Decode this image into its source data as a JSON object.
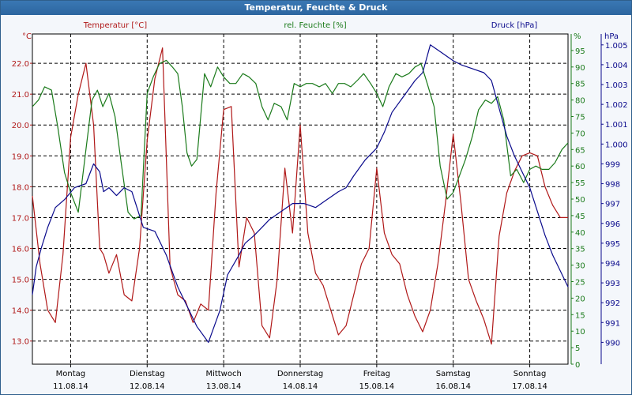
{
  "window": {
    "title": "Temperatur, Feuchte & Druck"
  },
  "colors": {
    "temperature": "#b01818",
    "humidity": "#1a7a1a",
    "pressure": "#0a0a8c",
    "grid": "#000000",
    "background": "#ffffff"
  },
  "chart_data": {
    "type": "line",
    "title": "Temperatur, Feuchte & Druck",
    "grid": true,
    "days": [
      {
        "name": "Montag",
        "date": "11.08.14"
      },
      {
        "name": "Dienstag",
        "date": "12.08.14"
      },
      {
        "name": "Mittwoch",
        "date": "13.08.14"
      },
      {
        "name": "Donnerstag",
        "date": "14.08.14"
      },
      {
        "name": "Freitag",
        "date": "15.08.14"
      },
      {
        "name": "Samstag",
        "date": "16.08.14"
      },
      {
        "name": "Sonntag",
        "date": "17.08.14"
      }
    ],
    "x_range": [
      0,
      7
    ],
    "axes": {
      "temperature": {
        "label": "Temperatur [°C]",
        "unit": "°C",
        "range": [
          12.25,
          22.95
        ],
        "ticks": [
          "13.0",
          "14.0",
          "15.0",
          "16.0",
          "17.0",
          "18.0",
          "19.0",
          "20.0",
          "21.0",
          "22.0"
        ]
      },
      "humidity": {
        "label": "rel. Feuchte [%]",
        "unit": "%",
        "range": [
          0,
          100
        ],
        "ticks": [
          "0",
          "5",
          "10",
          "15",
          "20",
          "25",
          "30",
          "35",
          "40",
          "45",
          "50",
          "55",
          "60",
          "65",
          "70",
          "75",
          "80",
          "85",
          "90",
          "95"
        ]
      },
      "pressure": {
        "label": "Druck [hPa]",
        "unit": "hPa",
        "range": [
          988.9,
          1005.55
        ],
        "ticks": [
          "990",
          "991",
          "992",
          "993",
          "994",
          "995",
          "996",
          "997",
          "998",
          "999",
          "1.000",
          "1.001",
          "1.002",
          "1.003",
          "1.004",
          "1.005"
        ]
      }
    },
    "series": [
      {
        "name": "Temperatur [°C]",
        "axis": "temperature",
        "x": [
          0,
          0.1,
          0.2,
          0.3,
          0.4,
          0.5,
          0.6,
          0.7,
          0.8,
          0.88,
          0.93,
          1.0,
          1.1,
          1.2,
          1.3,
          1.4,
          1.5,
          1.6,
          1.7,
          1.8,
          1.9,
          2.0,
          2.1,
          2.2,
          2.3,
          2.4,
          2.5,
          2.6,
          2.7,
          2.8,
          2.9,
          3.0,
          3.1,
          3.2,
          3.3,
          3.4,
          3.5,
          3.6,
          3.7,
          3.8,
          3.9,
          4.0,
          4.1,
          4.2,
          4.3,
          4.4,
          4.5,
          4.6,
          4.7,
          4.8,
          4.9,
          5.0,
          5.1,
          5.2,
          5.3,
          5.4,
          5.5,
          5.6,
          5.7,
          5.8,
          5.9,
          6.0,
          6.1,
          6.2,
          6.3,
          6.4,
          6.5,
          6.6,
          6.7,
          6.8,
          6.9,
          7.0
        ],
        "values": [
          17.7,
          15.5,
          14.0,
          13.6,
          15.8,
          19.6,
          21.0,
          22.0,
          20.0,
          16.0,
          15.8,
          15.2,
          15.8,
          14.5,
          14.3,
          16.0,
          19.5,
          21.5,
          22.5,
          15.4,
          14.5,
          14.3,
          13.6,
          14.2,
          14.0,
          17.8,
          20.5,
          20.6,
          15.4,
          17.0,
          16.5,
          13.5,
          13.1,
          15.0,
          18.6,
          16.5,
          20.0,
          16.5,
          15.2,
          14.8,
          14.0,
          13.2,
          13.5,
          14.5,
          15.5,
          16.0,
          18.6,
          16.5,
          15.8,
          15.5,
          14.5,
          13.8,
          13.3,
          14.0,
          15.5,
          17.5,
          19.7,
          17.5,
          15.0,
          14.3,
          13.7,
          12.9,
          16.4,
          17.8,
          18.5,
          19.0,
          19.1,
          19.0,
          18.0,
          17.4,
          17.0,
          17.0
        ]
      },
      {
        "name": "rel. Feuchte [%]",
        "axis": "humidity",
        "x": [
          0,
          0.08,
          0.16,
          0.25,
          0.33,
          0.42,
          0.5,
          0.6,
          0.7,
          0.78,
          0.85,
          0.92,
          1.0,
          1.08,
          1.16,
          1.25,
          1.33,
          1.42,
          1.5,
          1.58,
          1.66,
          1.75,
          1.83,
          1.9,
          1.96,
          2.02,
          2.08,
          2.15,
          2.25,
          2.33,
          2.42,
          2.5,
          2.58,
          2.66,
          2.75,
          2.83,
          2.92,
          3.0,
          3.08,
          3.16,
          3.25,
          3.33,
          3.42,
          3.5,
          3.58,
          3.66,
          3.75,
          3.83,
          3.92,
          4.0,
          4.08,
          4.16,
          4.25,
          4.33,
          4.42,
          4.5,
          4.58,
          4.66,
          4.75,
          4.83,
          4.92,
          5.0,
          5.08,
          5.16,
          5.25,
          5.33,
          5.42,
          5.5,
          5.58,
          5.66,
          5.75,
          5.83,
          5.92,
          6.0,
          6.08,
          6.16,
          6.25,
          6.33,
          6.42,
          6.5,
          6.58,
          6.66,
          6.75,
          6.83,
          6.92,
          7.0
        ],
        "values": [
          78,
          80,
          84,
          83,
          72,
          58,
          52,
          46,
          65,
          80,
          83,
          78,
          82,
          75,
          61,
          46,
          44,
          45,
          82,
          87,
          91,
          92,
          90,
          88,
          78,
          64,
          60,
          62,
          88,
          84,
          90,
          87,
          85,
          85,
          88,
          87,
          85,
          78,
          74,
          79,
          78,
          74,
          85,
          84,
          85,
          85,
          84,
          85,
          82,
          85,
          85,
          84,
          86,
          88,
          85,
          82,
          78,
          84,
          88,
          87,
          88,
          90,
          91,
          85,
          78,
          60,
          50,
          52,
          57,
          62,
          69,
          77,
          80,
          79,
          81,
          74,
          57,
          59,
          55,
          59,
          60,
          59,
          59,
          61,
          65,
          67
        ]
      },
      {
        "name": "Druck [hPa]",
        "axis": "pressure",
        "x": [
          0,
          0.05,
          0.12,
          0.2,
          0.3,
          0.42,
          0.55,
          0.7,
          0.8,
          0.88,
          0.93,
          1.0,
          1.1,
          1.2,
          1.3,
          1.45,
          1.6,
          1.75,
          1.9,
          2.0,
          2.15,
          2.3,
          2.45,
          2.55,
          2.7,
          2.78,
          2.9,
          3.0,
          3.1,
          3.25,
          3.4,
          3.55,
          3.7,
          3.85,
          4.0,
          4.1,
          4.2,
          4.35,
          4.5,
          4.6,
          4.7,
          4.85,
          5.0,
          5.1,
          5.2,
          5.35,
          5.5,
          5.6,
          5.75,
          5.9,
          6.0,
          6.1,
          6.2,
          6.3,
          6.4,
          6.5,
          6.6,
          6.7,
          6.8,
          6.9,
          7.0
        ],
        "values": [
          992.4,
          993.8,
          994.8,
          995.8,
          996.8,
          997.2,
          997.8,
          998.0,
          999.0,
          998.6,
          997.6,
          997.8,
          997.4,
          997.8,
          997.6,
          995.8,
          995.6,
          994.4,
          992.8,
          992.0,
          990.8,
          990.0,
          991.6,
          993.4,
          994.4,
          995.0,
          995.4,
          995.8,
          996.2,
          996.6,
          997.0,
          997.0,
          996.8,
          997.2,
          997.6,
          997.8,
          998.4,
          999.2,
          999.8,
          1000.6,
          1001.6,
          1002.4,
          1003.2,
          1003.6,
          1005.0,
          1004.6,
          1004.2,
          1004.0,
          1003.8,
          1003.6,
          1003.2,
          1001.8,
          1000.4,
          999.4,
          998.6,
          997.8,
          996.6,
          995.4,
          994.4,
          993.6,
          992.8
        ]
      }
    ]
  }
}
